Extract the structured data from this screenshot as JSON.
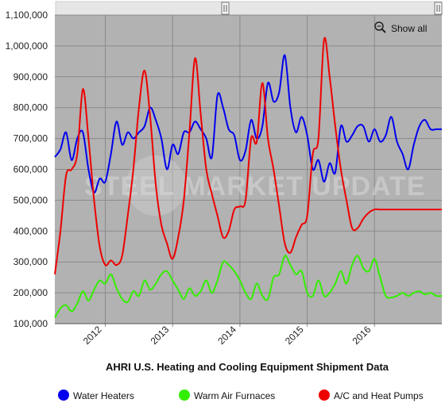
{
  "chart_data": {
    "type": "line",
    "title": "AHRI U.S. Heating and Cooling Equipment Shipment Data",
    "xlabel": "",
    "ylabel": "",
    "ylim": [
      100000,
      1100000
    ],
    "y_ticks": [
      "100,000",
      "200,000",
      "300,000",
      "400,000",
      "500,000",
      "600,000",
      "700,000",
      "800,000",
      "900,000",
      "1,000,000",
      "1,100,000"
    ],
    "x_tick_labels": [
      "2012",
      "2013",
      "2014",
      "2015",
      "2016"
    ],
    "grid": true,
    "legend_position": "bottom",
    "x": [
      "2011-04",
      "2011-05",
      "2011-06",
      "2011-07",
      "2011-08",
      "2011-09",
      "2011-10",
      "2011-11",
      "2011-12",
      "2012-01",
      "2012-02",
      "2012-03",
      "2012-04",
      "2012-05",
      "2012-06",
      "2012-07",
      "2012-08",
      "2012-09",
      "2012-10",
      "2012-11",
      "2012-12",
      "2013-01",
      "2013-02",
      "2013-03",
      "2013-04",
      "2013-05",
      "2013-06",
      "2013-07",
      "2013-08",
      "2013-09",
      "2013-10",
      "2013-11",
      "2013-12",
      "2014-01",
      "2014-02",
      "2014-03",
      "2014-04",
      "2014-05",
      "2014-06",
      "2014-07",
      "2014-08",
      "2014-09",
      "2014-10",
      "2014-11",
      "2014-12",
      "2015-01",
      "2015-02",
      "2015-03",
      "2015-04",
      "2015-05",
      "2015-06",
      "2015-07",
      "2015-08",
      "2015-09",
      "2015-10",
      "2015-11",
      "2015-12",
      "2016-01",
      "2016-02",
      "2016-03",
      "2016-04",
      "2016-05",
      "2016-06",
      "2016-07",
      "2016-08",
      "2016-09",
      "2016-10",
      "2016-11",
      "2016-12",
      "2017-01"
    ],
    "series": [
      {
        "name": "Water Heaters",
        "color": "#0000ee",
        "values": [
          640000,
          665000,
          720000,
          630000,
          700000,
          720000,
          600000,
          525000,
          570000,
          560000,
          650000,
          755000,
          680000,
          720000,
          700000,
          720000,
          740000,
          800000,
          760000,
          700000,
          600000,
          680000,
          650000,
          720000,
          720000,
          755000,
          730000,
          700000,
          640000,
          840000,
          800000,
          730000,
          710000,
          630000,
          660000,
          760000,
          700000,
          740000,
          880000,
          820000,
          850000,
          970000,
          800000,
          720000,
          770000,
          710000,
          600000,
          630000,
          560000,
          620000,
          590000,
          740000,
          690000,
          710000,
          740000,
          740000,
          690000,
          730000,
          690000,
          710000,
          770000,
          690000,
          650000,
          600000,
          680000,
          740000,
          760000,
          730000,
          730000,
          730000
        ]
      },
      {
        "name": "Warm Air Furnaces",
        "color": "#33ee00",
        "values": [
          120000,
          150000,
          160000,
          140000,
          165000,
          205000,
          175000,
          210000,
          240000,
          230000,
          260000,
          215000,
          180000,
          170000,
          205000,
          190000,
          240000,
          210000,
          230000,
          260000,
          270000,
          240000,
          210000,
          180000,
          215000,
          190000,
          205000,
          240000,
          200000,
          240000,
          300000,
          290000,
          270000,
          240000,
          200000,
          180000,
          230000,
          190000,
          180000,
          250000,
          260000,
          320000,
          290000,
          260000,
          270000,
          200000,
          190000,
          240000,
          190000,
          200000,
          230000,
          270000,
          230000,
          290000,
          320000,
          280000,
          270000,
          310000,
          250000,
          190000,
          185000,
          190000,
          200000,
          190000,
          200000,
          205000,
          195000,
          200000,
          190000,
          190000
        ]
      },
      {
        "name": "A/C and Heat Pumps",
        "color": "#ee0000",
        "values": [
          260000,
          400000,
          580000,
          600000,
          650000,
          860000,
          700000,
          500000,
          350000,
          290000,
          305000,
          290000,
          320000,
          450000,
          600000,
          800000,
          920000,
          770000,
          550000,
          420000,
          360000,
          310000,
          380000,
          500000,
          720000,
          960000,
          780000,
          600000,
          520000,
          450000,
          380000,
          400000,
          470000,
          480000,
          500000,
          700000,
          690000,
          880000,
          700000,
          600000,
          480000,
          360000,
          330000,
          380000,
          420000,
          450000,
          650000,
          700000,
          1020000,
          900000,
          740000,
          600000,
          500000,
          410000,
          410000,
          440000,
          460000,
          470000,
          470000,
          470000,
          470000,
          470000,
          470000,
          470000,
          470000,
          470000,
          470000,
          470000,
          470000,
          470000
        ]
      }
    ]
  },
  "ui": {
    "show_all_label": "Show all",
    "watermark": "STEEL MARKET UPDATE",
    "legend": [
      {
        "label": "Water Heaters",
        "color": "#0000ee"
      },
      {
        "label": "Warm Air Furnaces",
        "color": "#33ee00"
      },
      {
        "label": "A/C and Heat Pumps",
        "color": "#ee0000"
      }
    ]
  }
}
